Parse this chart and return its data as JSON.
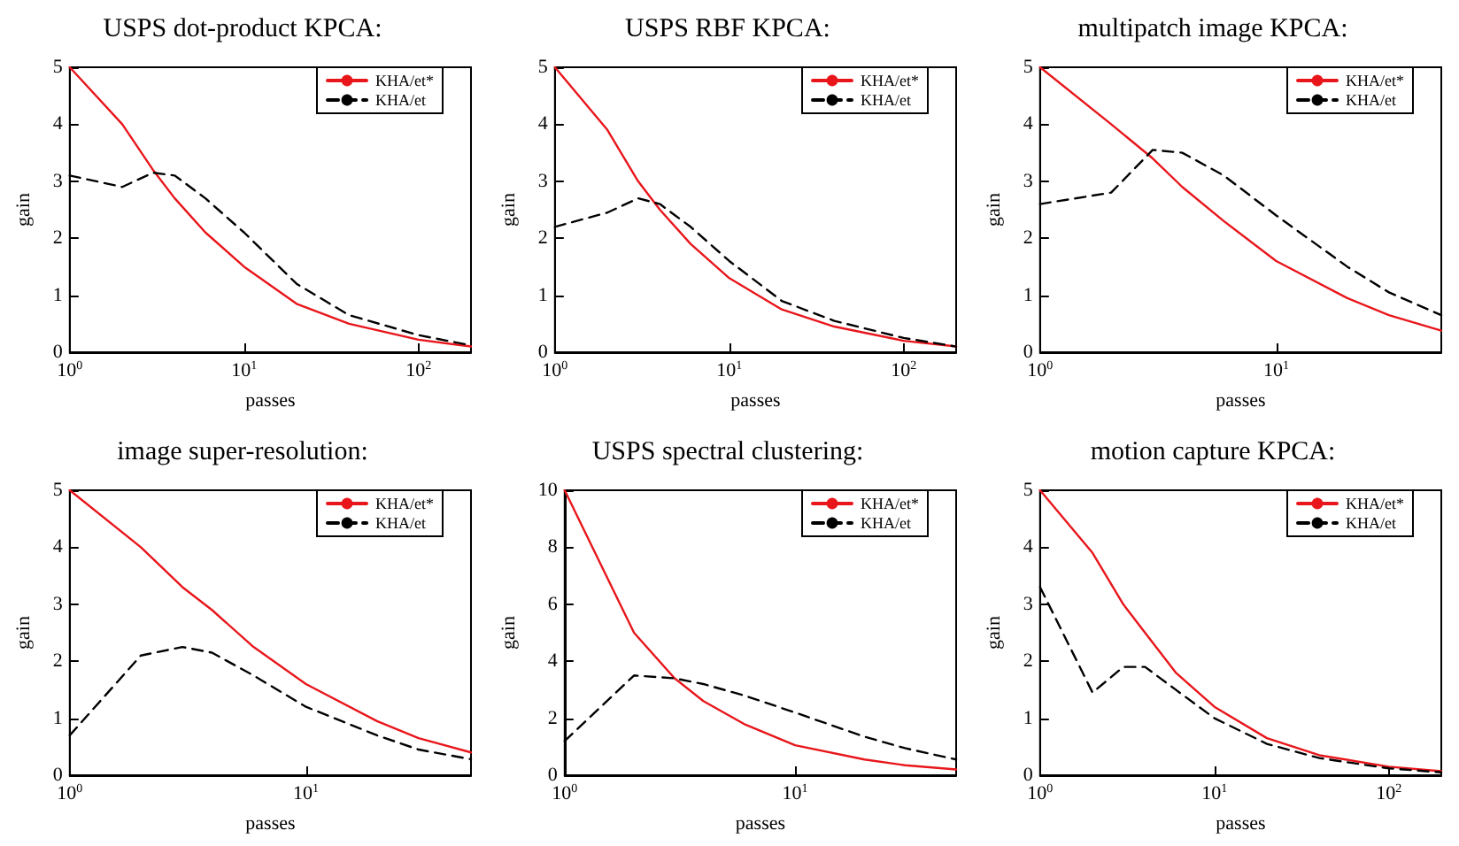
{
  "chart_data": [
    {
      "type": "line",
      "title": "USPS dot-product KPCA:",
      "xlabel": "passes",
      "ylabel": "gain",
      "log": "x",
      "grid": false,
      "legend": "top right",
      "xlim": [
        1,
        200
      ],
      "xticks": [
        {
          "value": 1,
          "label": "10$^{0}$"
        },
        {
          "value": 10,
          "label": "10$^{1}$"
        },
        {
          "value": 100,
          "label": "10$^{2}$"
        }
      ],
      "ylim": [
        0,
        5
      ],
      "yticks": [
        0,
        1,
        2,
        3,
        4,
        5
      ],
      "series": [
        {
          "name": "KHA/et*",
          "color": "#e8161b",
          "line_style": "solid",
          "x": [
            1,
            2,
            3,
            4,
            6,
            10,
            20,
            40,
            100,
            200
          ],
          "values": [
            5,
            4,
            3.2,
            2.7,
            2.1,
            1.5,
            0.85,
            0.5,
            0.22,
            0.1
          ]
        },
        {
          "name": "KHA/et",
          "color": "#000000",
          "line_style": "dashed",
          "x": [
            1,
            2,
            3,
            4,
            6,
            10,
            20,
            40,
            100,
            200
          ],
          "values": [
            3.1,
            2.9,
            3.15,
            3.1,
            2.7,
            2.1,
            1.2,
            0.65,
            0.3,
            0.12
          ]
        }
      ]
    },
    {
      "type": "line",
      "title": "USPS RBF KPCA:",
      "xlabel": "passes",
      "ylabel": "gain",
      "log": "x",
      "grid": false,
      "legend": "top right",
      "xlim": [
        1,
        200
      ],
      "xticks": [
        {
          "value": 1,
          "label": "10$^{0}$"
        },
        {
          "value": 10,
          "label": "10$^{1}$"
        },
        {
          "value": 100,
          "label": "10$^{2}$"
        }
      ],
      "ylim": [
        0,
        5
      ],
      "yticks": [
        0,
        1,
        2,
        3,
        4,
        5
      ],
      "series": [
        {
          "name": "KHA/et*",
          "color": "#e8161b",
          "line_style": "solid",
          "x": [
            1,
            2,
            3,
            4,
            6,
            10,
            20,
            40,
            100,
            200
          ],
          "values": [
            5,
            3.9,
            3.0,
            2.5,
            1.9,
            1.3,
            0.75,
            0.45,
            0.2,
            0.1
          ]
        },
        {
          "name": "KHA/et",
          "color": "#000000",
          "line_style": "dashed",
          "x": [
            1,
            2,
            3,
            4,
            6,
            10,
            20,
            40,
            100,
            200
          ],
          "values": [
            2.2,
            2.45,
            2.7,
            2.6,
            2.2,
            1.6,
            0.9,
            0.55,
            0.25,
            0.1
          ]
        }
      ]
    },
    {
      "type": "line",
      "title": "multipatch image KPCA:",
      "xlabel": "passes",
      "ylabel": "gain",
      "log": "x",
      "grid": false,
      "legend": "top right",
      "xlim": [
        1,
        50
      ],
      "xticks": [
        {
          "value": 1,
          "label": "10$^{0}$"
        },
        {
          "value": 10,
          "label": "10$^{1}$"
        }
      ],
      "ylim": [
        0,
        5
      ],
      "yticks": [
        0,
        1,
        2,
        3,
        4,
        5
      ],
      "series": [
        {
          "name": "KHA/et*",
          "color": "#e8161b",
          "line_style": "solid",
          "x": [
            1,
            2,
            3,
            4,
            6,
            10,
            20,
            30,
            50
          ],
          "values": [
            5,
            4,
            3.4,
            2.9,
            2.3,
            1.6,
            0.95,
            0.65,
            0.38
          ]
        },
        {
          "name": "KHA/et",
          "color": "#000000",
          "line_style": "dashed",
          "x": [
            1,
            2,
            3,
            4,
            6,
            10,
            20,
            30,
            50
          ],
          "values": [
            2.6,
            2.8,
            3.55,
            3.5,
            3.1,
            2.4,
            1.5,
            1.05,
            0.65
          ]
        }
      ]
    },
    {
      "type": "line",
      "title": "image super-resolution:",
      "xlabel": "passes",
      "ylabel": "gain",
      "log": "x",
      "grid": false,
      "legend": "top right",
      "xlim": [
        1,
        50
      ],
      "xticks": [
        {
          "value": 1,
          "label": "10$^{0}$"
        },
        {
          "value": 10,
          "label": "10$^{1}$"
        }
      ],
      "ylim": [
        0,
        5
      ],
      "yticks": [
        0,
        1,
        2,
        3,
        4,
        5
      ],
      "series": [
        {
          "name": "KHA/et*",
          "color": "#e8161b",
          "line_style": "solid",
          "x": [
            1,
            2,
            3,
            4,
            6,
            10,
            20,
            30,
            50
          ],
          "values": [
            5,
            4,
            3.3,
            2.9,
            2.25,
            1.6,
            0.95,
            0.65,
            0.4
          ]
        },
        {
          "name": "KHA/et",
          "color": "#000000",
          "line_style": "dashed",
          "x": [
            1,
            2,
            3,
            4,
            6,
            10,
            20,
            30,
            50
          ],
          "values": [
            0.7,
            2.1,
            2.25,
            2.15,
            1.75,
            1.2,
            0.7,
            0.45,
            0.28
          ]
        }
      ]
    },
    {
      "type": "line",
      "title": "USPS spectral clustering:",
      "xlabel": "passes",
      "ylabel": "gain",
      "log": "x",
      "grid": false,
      "legend": "top right",
      "xlim": [
        1,
        50
      ],
      "xticks": [
        {
          "value": 1,
          "label": "10$^{0}$"
        },
        {
          "value": 10,
          "label": "10$^{1}$"
        }
      ],
      "ylim": [
        0,
        10
      ],
      "yticks": [
        0,
        2,
        4,
        6,
        8,
        10
      ],
      "series": [
        {
          "name": "KHA/et*",
          "color": "#e8161b",
          "line_style": "solid",
          "x": [
            1,
            2,
            3,
            4,
            6,
            10,
            20,
            30,
            50
          ],
          "values": [
            10,
            5,
            3.4,
            2.6,
            1.8,
            1.05,
            0.55,
            0.35,
            0.2
          ]
        },
        {
          "name": "KHA/et",
          "color": "#000000",
          "line_style": "dashed",
          "x": [
            1,
            2,
            3,
            4,
            6,
            10,
            20,
            30,
            50
          ],
          "values": [
            1.2,
            3.5,
            3.4,
            3.2,
            2.8,
            2.2,
            1.35,
            0.95,
            0.55
          ]
        }
      ]
    },
    {
      "type": "line",
      "title": "motion capture KPCA:",
      "xlabel": "passes",
      "ylabel": "gain",
      "log": "x",
      "grid": false,
      "legend": "top right",
      "xlim": [
        1,
        200
      ],
      "xticks": [
        {
          "value": 1,
          "label": "10$^{0}$"
        },
        {
          "value": 10,
          "label": "10$^{1}$"
        },
        {
          "value": 100,
          "label": "10$^{2}$"
        }
      ],
      "ylim": [
        0,
        5
      ],
      "yticks": [
        0,
        1,
        2,
        3,
        4,
        5
      ],
      "series": [
        {
          "name": "KHA/et*",
          "color": "#e8161b",
          "line_style": "solid",
          "x": [
            1,
            2,
            3,
            4,
            6,
            10,
            20,
            40,
            100,
            200
          ],
          "values": [
            5,
            3.9,
            3.0,
            2.5,
            1.8,
            1.2,
            0.65,
            0.35,
            0.15,
            0.07
          ]
        },
        {
          "name": "KHA/et",
          "color": "#000000",
          "line_style": "dashed",
          "x": [
            1,
            2,
            3,
            4,
            6,
            10,
            20,
            40,
            100,
            200
          ],
          "values": [
            3.3,
            1.45,
            1.9,
            1.9,
            1.5,
            1.0,
            0.55,
            0.3,
            0.12,
            0.05
          ]
        }
      ]
    }
  ]
}
